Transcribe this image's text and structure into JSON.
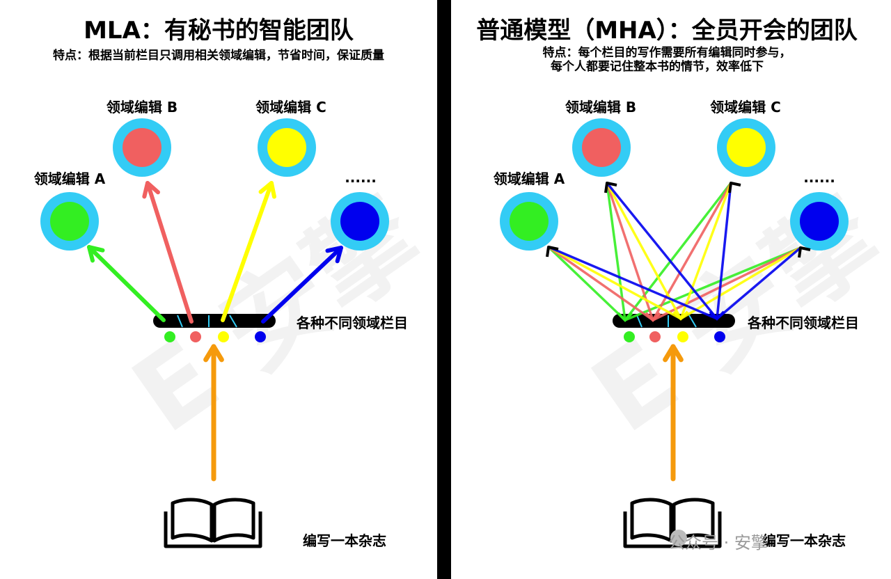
{
  "left": {
    "title": "MLA：有秘书的智能团队",
    "subtitle": "特点：根据当前栏目只调用相关领域编辑，节省时间，保证质量",
    "editor_a": "领域编辑 A",
    "editor_b": "领域编辑 B",
    "editor_c": "领域编辑 C",
    "editor_more": "......",
    "columns_label": "各种不同领域栏目",
    "book_label": "编写一本杂志"
  },
  "right": {
    "title": "普通模型（MHA）：全员开会的团队",
    "subtitle_line1": "特点：每个栏目的写作需要所有编辑同时参与，",
    "subtitle_line2": "每个人都要记住整本书的情节，效率低下",
    "editor_a": "领域编辑 A",
    "editor_b": "领域编辑 B",
    "editor_c": "领域编辑 C",
    "editor_more": "......",
    "columns_label": "各种不同领域栏目",
    "book_label": "编写一本杂志"
  },
  "watermark": "公众号 · 安擎",
  "colors": {
    "editor_ring": "#33ccf5",
    "green": "#33ee22",
    "red": "#f06060",
    "yellow": "#ffff00",
    "blue": "#0000ee",
    "orange": "#f59a0c",
    "bar": "#000000"
  }
}
